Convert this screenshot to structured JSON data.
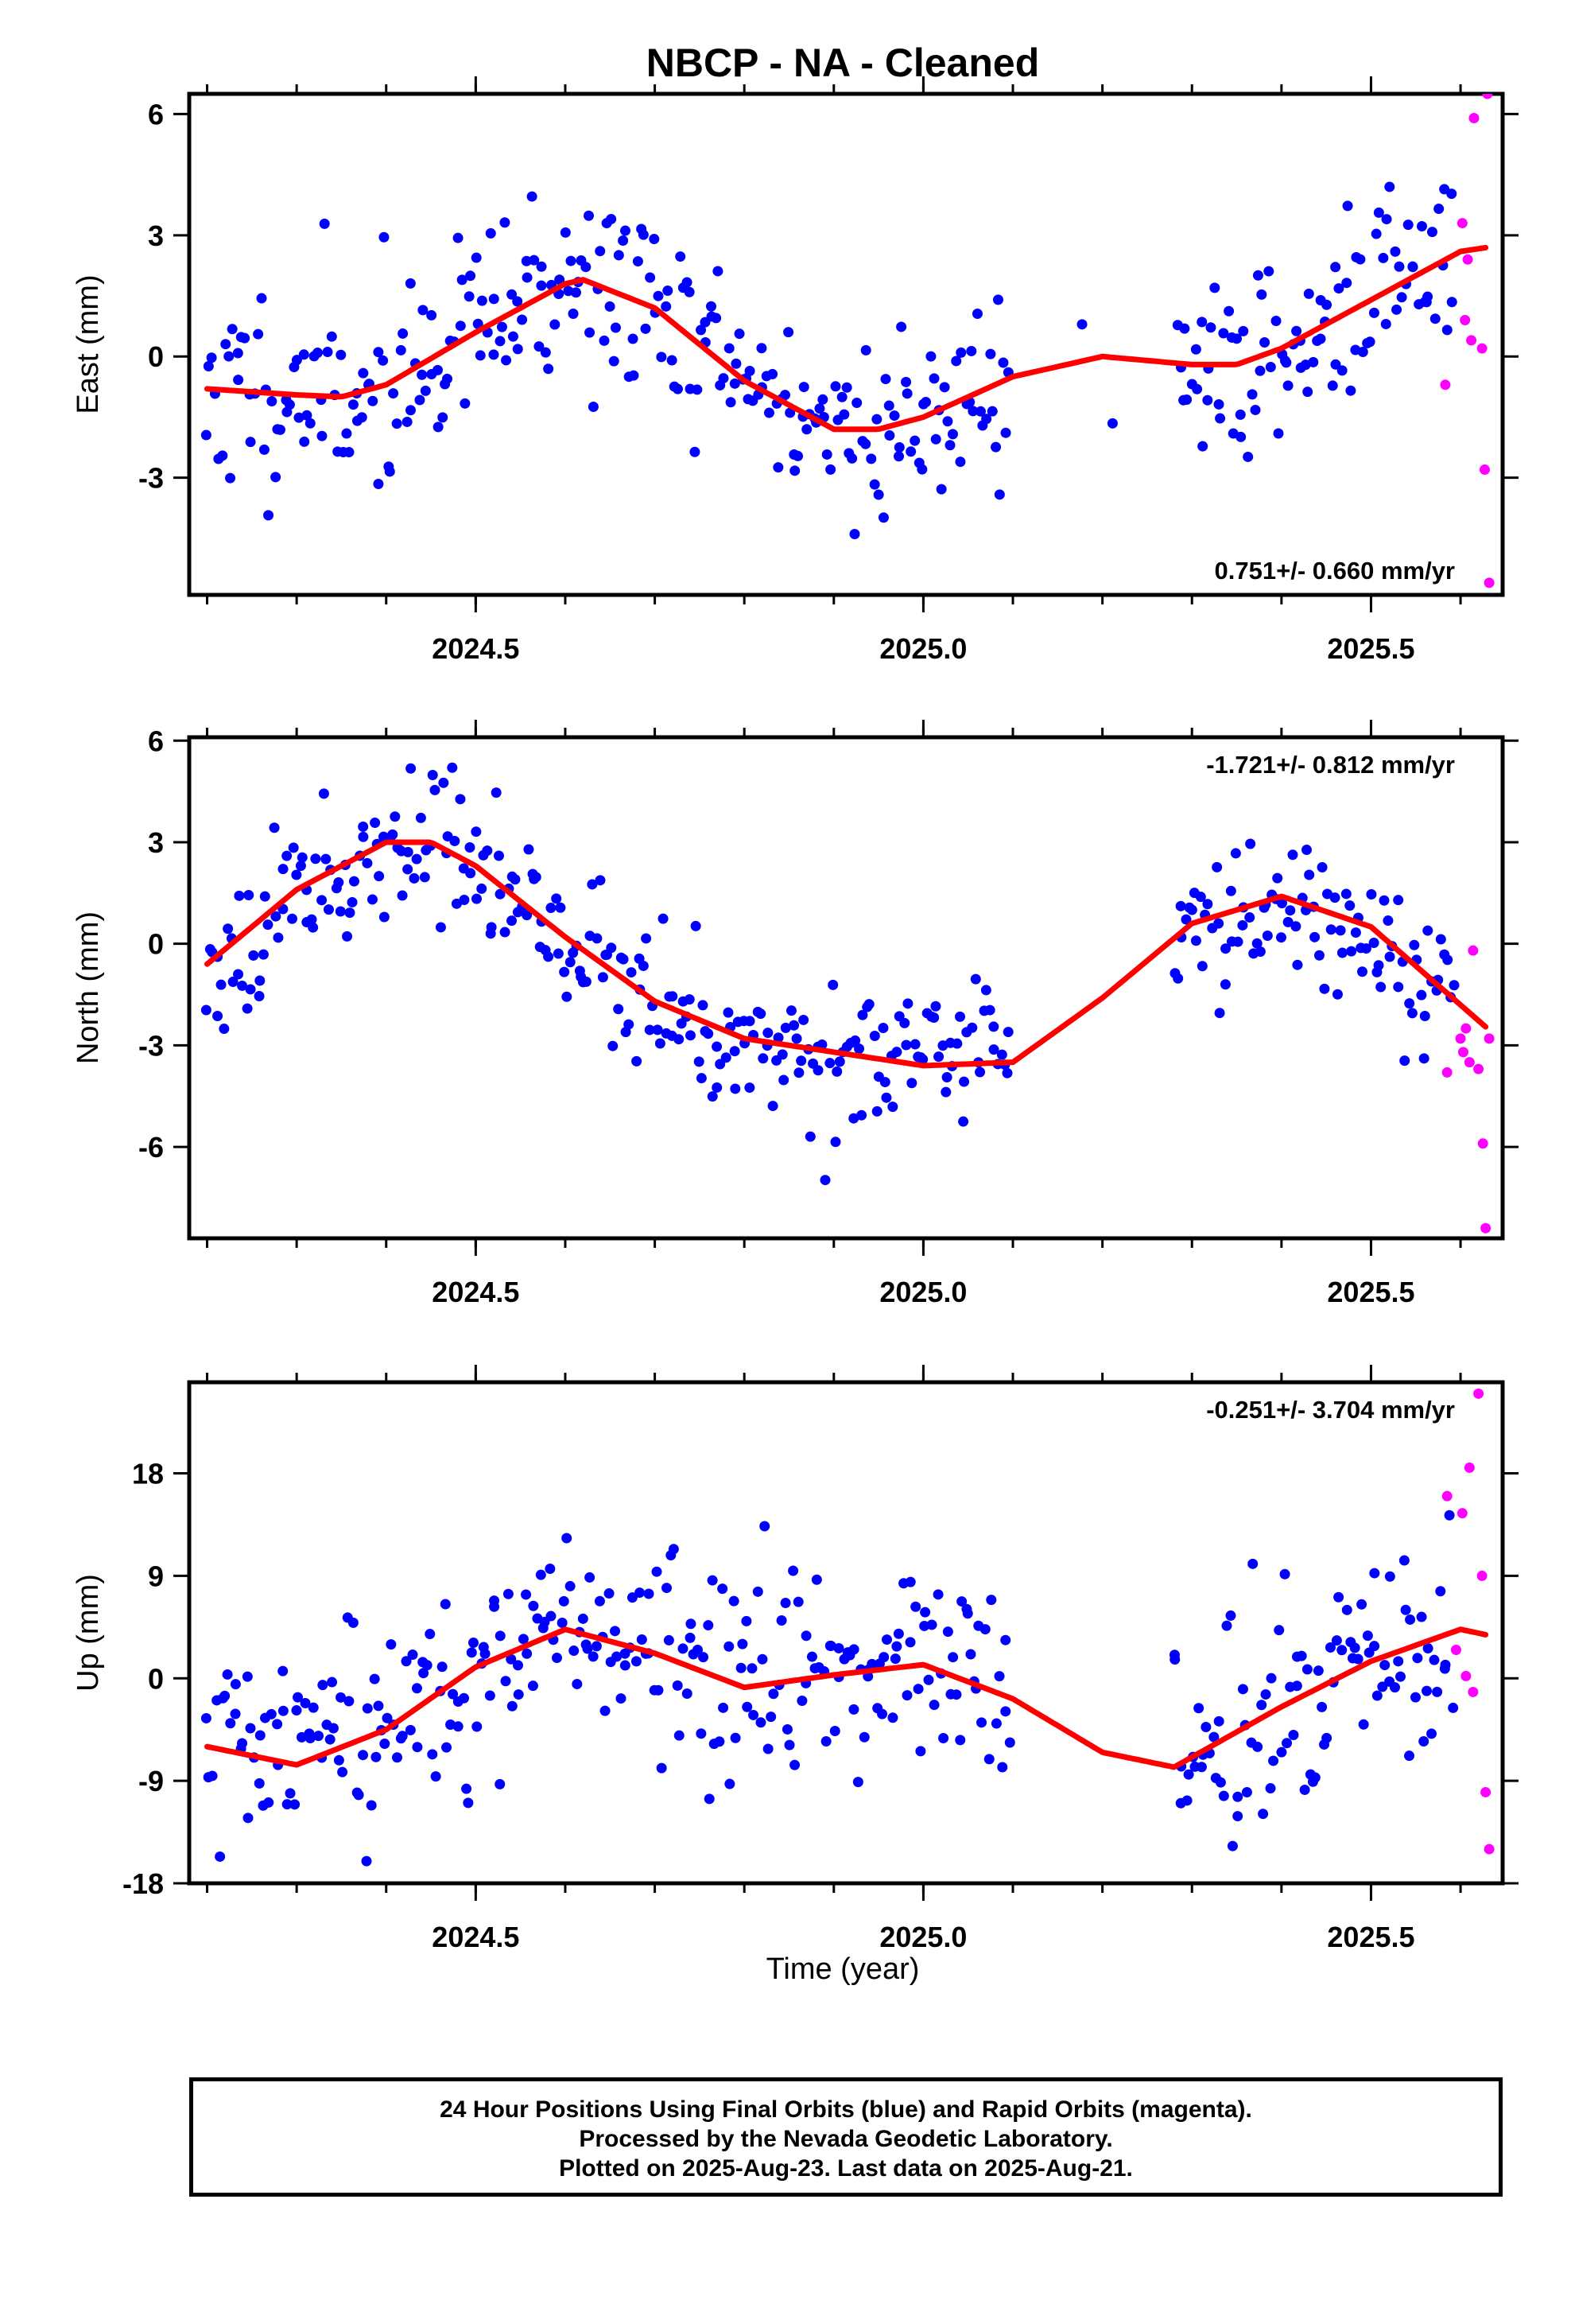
{
  "title": "NBCP  - NA - Cleaned",
  "xlabel": "Time (year)",
  "colors": {
    "final_orbits": "#0000ff",
    "rapid_orbits": "#ff00ff",
    "fit": "#ff0000",
    "frame": "#000000"
  },
  "caption": [
    "24 Hour Positions Using Final Orbits (blue) and Rapid Orbits (magenta).",
    "Processed by the Nevada Geodetic Laboratory.",
    "Plotted on 2025-Aug-23. Last data on 2025-Aug-21."
  ],
  "chart_data": [
    {
      "type": "scatter",
      "component": "east",
      "ylabel": "East (mm)",
      "rate_text": "0.751+/- 0.660 mm/yr",
      "rate_position": "bottom-right",
      "xlim": [
        2024.18,
        2025.647
      ],
      "ylim": [
        -5.9,
        6.5
      ],
      "x_ticks": [
        2024.5,
        2025.0,
        2025.5
      ],
      "x_tick_labels": [
        "2024.5",
        "2025.0",
        "2025.5"
      ],
      "y_ticks": [
        -3,
        0,
        3,
        6
      ],
      "y_tick_labels": [
        "-3",
        "0",
        "3",
        "6"
      ],
      "fit": {
        "x": [
          2024.2,
          2024.3,
          2024.35,
          2024.4,
          2024.5,
          2024.6,
          2024.62,
          2024.7,
          2024.8,
          2024.9,
          2024.95,
          2025.0,
          2025.1,
          2025.2,
          2025.3,
          2025.35,
          2025.4,
          2025.5,
          2025.6,
          2025.63
        ],
        "y": [
          -0.8,
          -0.95,
          -1.0,
          -0.7,
          0.6,
          1.8,
          1.9,
          1.2,
          -0.6,
          -1.8,
          -1.8,
          -1.5,
          -0.5,
          0.0,
          -0.2,
          -0.2,
          0.2,
          1.4,
          2.6,
          2.7
        ]
      },
      "rapid_points": {
        "x": [
          2025.583,
          2025.602,
          2025.605,
          2025.608,
          2025.612,
          2025.615,
          2025.624,
          2025.627,
          2025.63,
          2025.632
        ],
        "y": [
          -0.7,
          3.3,
          0.9,
          2.4,
          0.4,
          5.9,
          0.2,
          -2.8,
          6.5,
          -5.6
        ]
      },
      "points_seed": {
        "seed": 11,
        "count": 420,
        "sigma": 1.2,
        "gap": [
          2025.1,
          2025.28
        ]
      }
    },
    {
      "type": "scatter",
      "component": "north",
      "ylabel": "North (mm)",
      "rate_text": "-1.721+/- 0.812 mm/yr",
      "rate_position": "top-right",
      "xlim": [
        2024.18,
        2025.647
      ],
      "ylim": [
        -8.7,
        6.1
      ],
      "x_ticks": [
        2024.5,
        2025.0,
        2025.5
      ],
      "x_tick_labels": [
        "2024.5",
        "2025.0",
        "2025.5"
      ],
      "y_ticks": [
        -6,
        -3,
        0,
        3,
        6
      ],
      "y_tick_labels": [
        "-6",
        "-3",
        "0",
        "3",
        "6"
      ],
      "fit": {
        "x": [
          2024.2,
          2024.3,
          2024.4,
          2024.45,
          2024.5,
          2024.6,
          2024.7,
          2024.8,
          2024.9,
          2025.0,
          2025.1,
          2025.2,
          2025.3,
          2025.4,
          2025.5,
          2025.63
        ],
        "y": [
          -0.6,
          1.6,
          3.0,
          3.0,
          2.3,
          0.2,
          -1.7,
          -2.8,
          -3.2,
          -3.6,
          -3.5,
          -1.6,
          0.6,
          1.4,
          0.5,
          -2.5
        ]
      },
      "rapid_points": {
        "x": [
          2025.585,
          2025.6,
          2025.603,
          2025.606,
          2025.61,
          2025.614,
          2025.62,
          2025.625,
          2025.628,
          2025.632
        ],
        "y": [
          -3.8,
          -2.8,
          -3.2,
          -2.5,
          -3.5,
          -0.2,
          -3.7,
          -5.9,
          -8.4,
          -2.8
        ]
      },
      "points_seed": {
        "seed": 23,
        "count": 420,
        "sigma": 1.05,
        "gap": [
          2025.1,
          2025.28
        ]
      }
    },
    {
      "type": "scatter",
      "component": "up",
      "ylabel": "Up (mm)",
      "rate_text": "-0.251+/- 3.704 mm/yr",
      "rate_position": "top-right",
      "xlim": [
        2024.18,
        2025.647
      ],
      "ylim": [
        -18,
        26
      ],
      "x_ticks": [
        2024.5,
        2025.0,
        2025.5
      ],
      "x_tick_labels": [
        "2024.5",
        "2025.0",
        "2025.5"
      ],
      "y_ticks": [
        -18,
        -9,
        0,
        9,
        18
      ],
      "y_tick_labels": [
        "-18",
        "-9",
        "0",
        "9",
        "18"
      ],
      "fit": {
        "x": [
          2024.2,
          2024.3,
          2024.4,
          2024.5,
          2024.6,
          2024.7,
          2024.8,
          2024.9,
          2025.0,
          2025.1,
          2025.2,
          2025.28,
          2025.4,
          2025.5,
          2025.6,
          2025.63
        ],
        "y": [
          -6,
          -7.6,
          -4.5,
          1.0,
          4.3,
          2.2,
          -0.8,
          0.3,
          1.2,
          -1.8,
          -6.5,
          -7.8,
          -2.5,
          1.5,
          4.3,
          3.8
        ]
      },
      "rapid_points": {
        "x": [
          2025.585,
          2025.595,
          2025.602,
          2025.606,
          2025.61,
          2025.614,
          2025.62,
          2025.624,
          2025.628,
          2025.632
        ],
        "y": [
          16,
          2.5,
          14.5,
          0.2,
          18.5,
          -1.2,
          25,
          9,
          -10,
          -15
        ]
      },
      "points_seed": {
        "seed": 37,
        "count": 420,
        "sigma": 4.6,
        "gap": [
          2025.1,
          2025.28
        ]
      }
    }
  ]
}
